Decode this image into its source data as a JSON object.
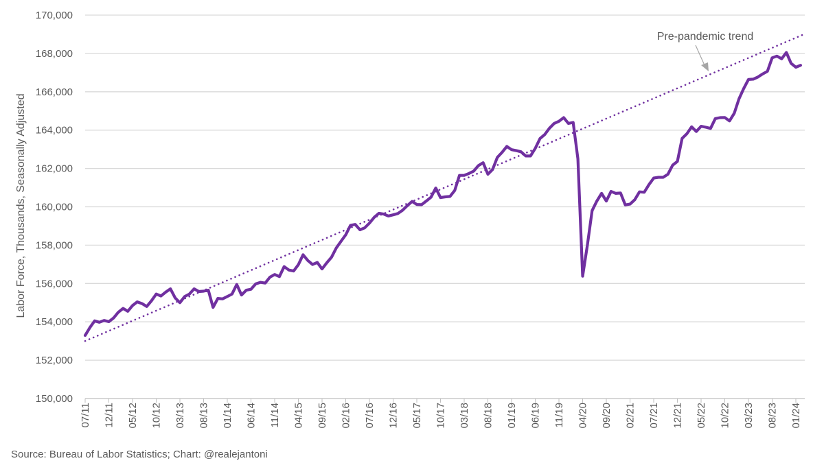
{
  "chart_data": {
    "type": "line",
    "title": "",
    "xlabel": "",
    "ylabel": "Labor Force, Thousands, Seasonally Adjusted",
    "ylim": [
      150000,
      170000
    ],
    "y_ticks": [
      "150,000",
      "152,000",
      "154,000",
      "156,000",
      "158,000",
      "160,000",
      "162,000",
      "164,000",
      "166,000",
      "168,000",
      "170,000"
    ],
    "y_tick_values": [
      150000,
      152000,
      154000,
      156000,
      158000,
      160000,
      162000,
      164000,
      166000,
      168000,
      170000
    ],
    "grid": "horizontal",
    "x_start_month": "07/11",
    "x_end_month": "02/24",
    "x_tick_labels": [
      "07/11",
      "12/11",
      "05/12",
      "10/12",
      "03/13",
      "08/13",
      "01/14",
      "06/14",
      "11/14",
      "04/15",
      "09/15",
      "02/16",
      "07/16",
      "12/16",
      "05/17",
      "10/17",
      "03/18",
      "08/18",
      "01/19",
      "06/19",
      "11/19",
      "04/20",
      "09/20",
      "02/21",
      "07/21",
      "12/21",
      "05/22",
      "10/22",
      "03/23",
      "08/23",
      "01/24"
    ],
    "x_tick_every_months": 5,
    "series": [
      {
        "name": "Labor Force",
        "color": "#7030A0",
        "style": "solid",
        "values": [
          153290,
          153700,
          154050,
          153980,
          154070,
          154010,
          154200,
          154500,
          154700,
          154550,
          154850,
          155040,
          154950,
          154800,
          155100,
          155450,
          155350,
          155550,
          155720,
          155250,
          155000,
          155320,
          155450,
          155720,
          155580,
          155600,
          155650,
          154750,
          155220,
          155200,
          155320,
          155450,
          155950,
          155400,
          155650,
          155700,
          155980,
          156060,
          156020,
          156330,
          156470,
          156360,
          156880,
          156700,
          156650,
          156980,
          157500,
          157200,
          156990,
          157100,
          156760,
          157080,
          157370,
          157850,
          158200,
          158540,
          159030,
          159080,
          158800,
          158900,
          159150,
          159450,
          159660,
          159620,
          159520,
          159580,
          159650,
          159820,
          160060,
          160280,
          160120,
          160110,
          160300,
          160500,
          160980,
          160480,
          160520,
          160540,
          160850,
          161640,
          161640,
          161740,
          161860,
          162150,
          162300,
          161700,
          161950,
          162580,
          162840,
          163150,
          162980,
          162930,
          162870,
          162650,
          162650,
          163050,
          163560,
          163770,
          164100,
          164350,
          164460,
          164650,
          164350,
          164400,
          162500,
          156380,
          158000,
          159800,
          160300,
          160700,
          160300,
          160800,
          160700,
          160720,
          160100,
          160140,
          160370,
          160780,
          160760,
          161160,
          161500,
          161540,
          161540,
          161700,
          162170,
          162370,
          163570,
          163810,
          164170,
          163930,
          164200,
          164150,
          164090,
          164600,
          164650,
          164660,
          164480,
          164880,
          165630,
          166170,
          166640,
          166660,
          166770,
          166930,
          167070,
          167770,
          167860,
          167720,
          168050,
          167480,
          167280,
          167380
        ]
      },
      {
        "name": "Pre-pandemic trend",
        "color": "#7030A0",
        "style": "dotted",
        "start_value": 153000,
        "end_value": 168950
      }
    ],
    "annotations": [
      {
        "text": "Pre-pandemic trend",
        "points_to": "Pre-pandemic trend"
      }
    ]
  },
  "source": "Source: Bureau of Labor Statistics; Chart: @realejantoni"
}
